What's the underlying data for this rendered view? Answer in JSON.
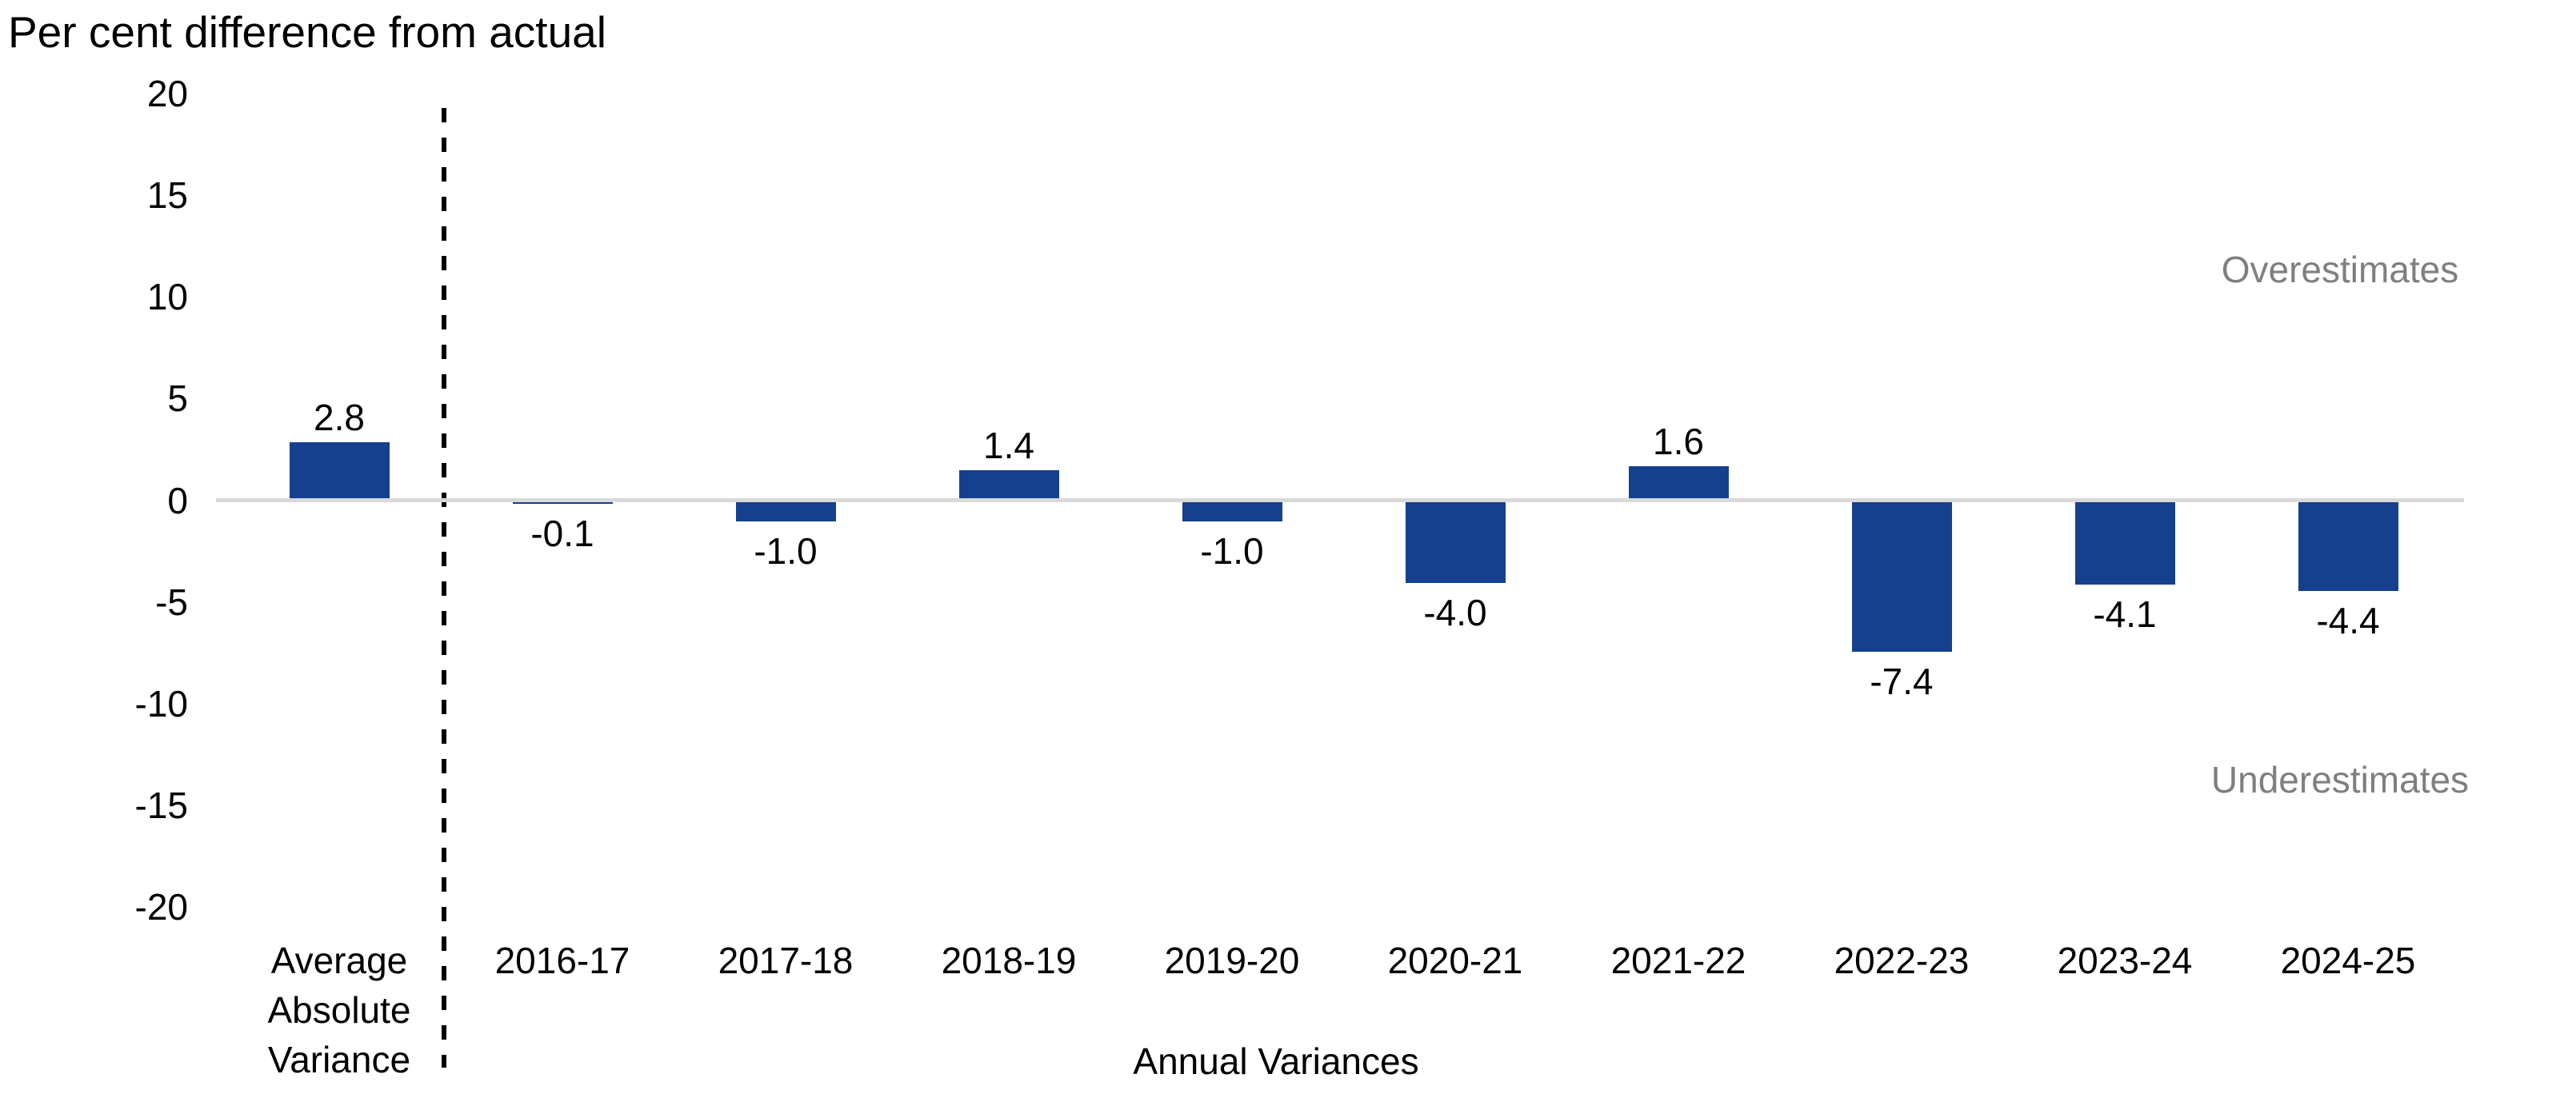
{
  "chart": {
    "title": "Per cent difference from actual",
    "x_axis_title": "Annual Variances",
    "annotation_over": "Overestimates",
    "annotation_under": "Underestimates"
  },
  "chart_data": {
    "type": "bar",
    "title": "Per cent difference from actual",
    "xlabel": "Annual Variances",
    "ylabel": "Per cent difference from actual",
    "ylim": [
      -20,
      20
    ],
    "y_ticks": [
      20,
      15,
      10,
      5,
      0,
      -5,
      -10,
      -15,
      -20
    ],
    "grid": false,
    "legend": false,
    "categories": [
      "Average\nAbsolute\nVariance",
      "2016-17",
      "2017-18",
      "2018-19",
      "2019-20",
      "2020-21",
      "2021-22",
      "2022-23",
      "2023-24",
      "2024-25"
    ],
    "values": [
      2.8,
      -0.1,
      -1.0,
      1.4,
      -1.0,
      -4.0,
      1.6,
      -7.4,
      -4.1,
      -4.4
    ],
    "data_labels": [
      "2.8",
      "-0.1",
      "-1.0",
      "1.4",
      "-1.0",
      "-4.0",
      "1.6",
      "-7.4",
      "-4.1",
      "-4.4"
    ],
    "annotations": [
      {
        "text": "Overestimates",
        "region": "positive"
      },
      {
        "text": "Underestimates",
        "region": "negative"
      }
    ],
    "colors": {
      "bar": "#14408E",
      "zero_line": "#D9D9D9",
      "separator_line": "#000000",
      "annotation_text": "#7F7F7F",
      "text": "#000000"
    },
    "separator_after_first_category": true
  }
}
